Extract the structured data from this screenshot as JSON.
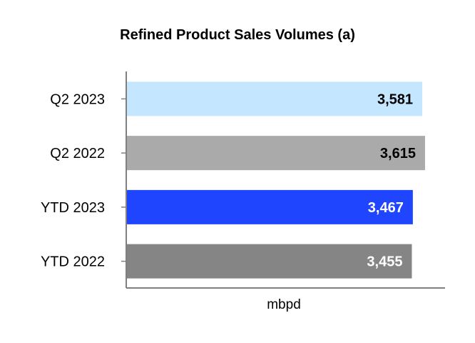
{
  "chart_data": {
    "type": "bar",
    "orientation": "horizontal",
    "title": "Refined Product Sales Volumes (a)",
    "xlabel": "mbpd",
    "ylabel": "",
    "categories": [
      "Q2 2023",
      "Q2 2022",
      "YTD 2023",
      "YTD 2022"
    ],
    "values": [
      3581,
      3615,
      3467,
      3455
    ],
    "value_labels": [
      "3,581",
      "3,615",
      "3,467",
      "3,455"
    ],
    "bar_colors": [
      "#c5e6ff",
      "#aaaaaa",
      "#1f45ff",
      "#858585"
    ],
    "label_colors": [
      "#000000",
      "#000000",
      "#ffffff",
      "#ffffff"
    ],
    "xlim": [
      0,
      3650
    ],
    "grid": false,
    "legend": "none"
  }
}
